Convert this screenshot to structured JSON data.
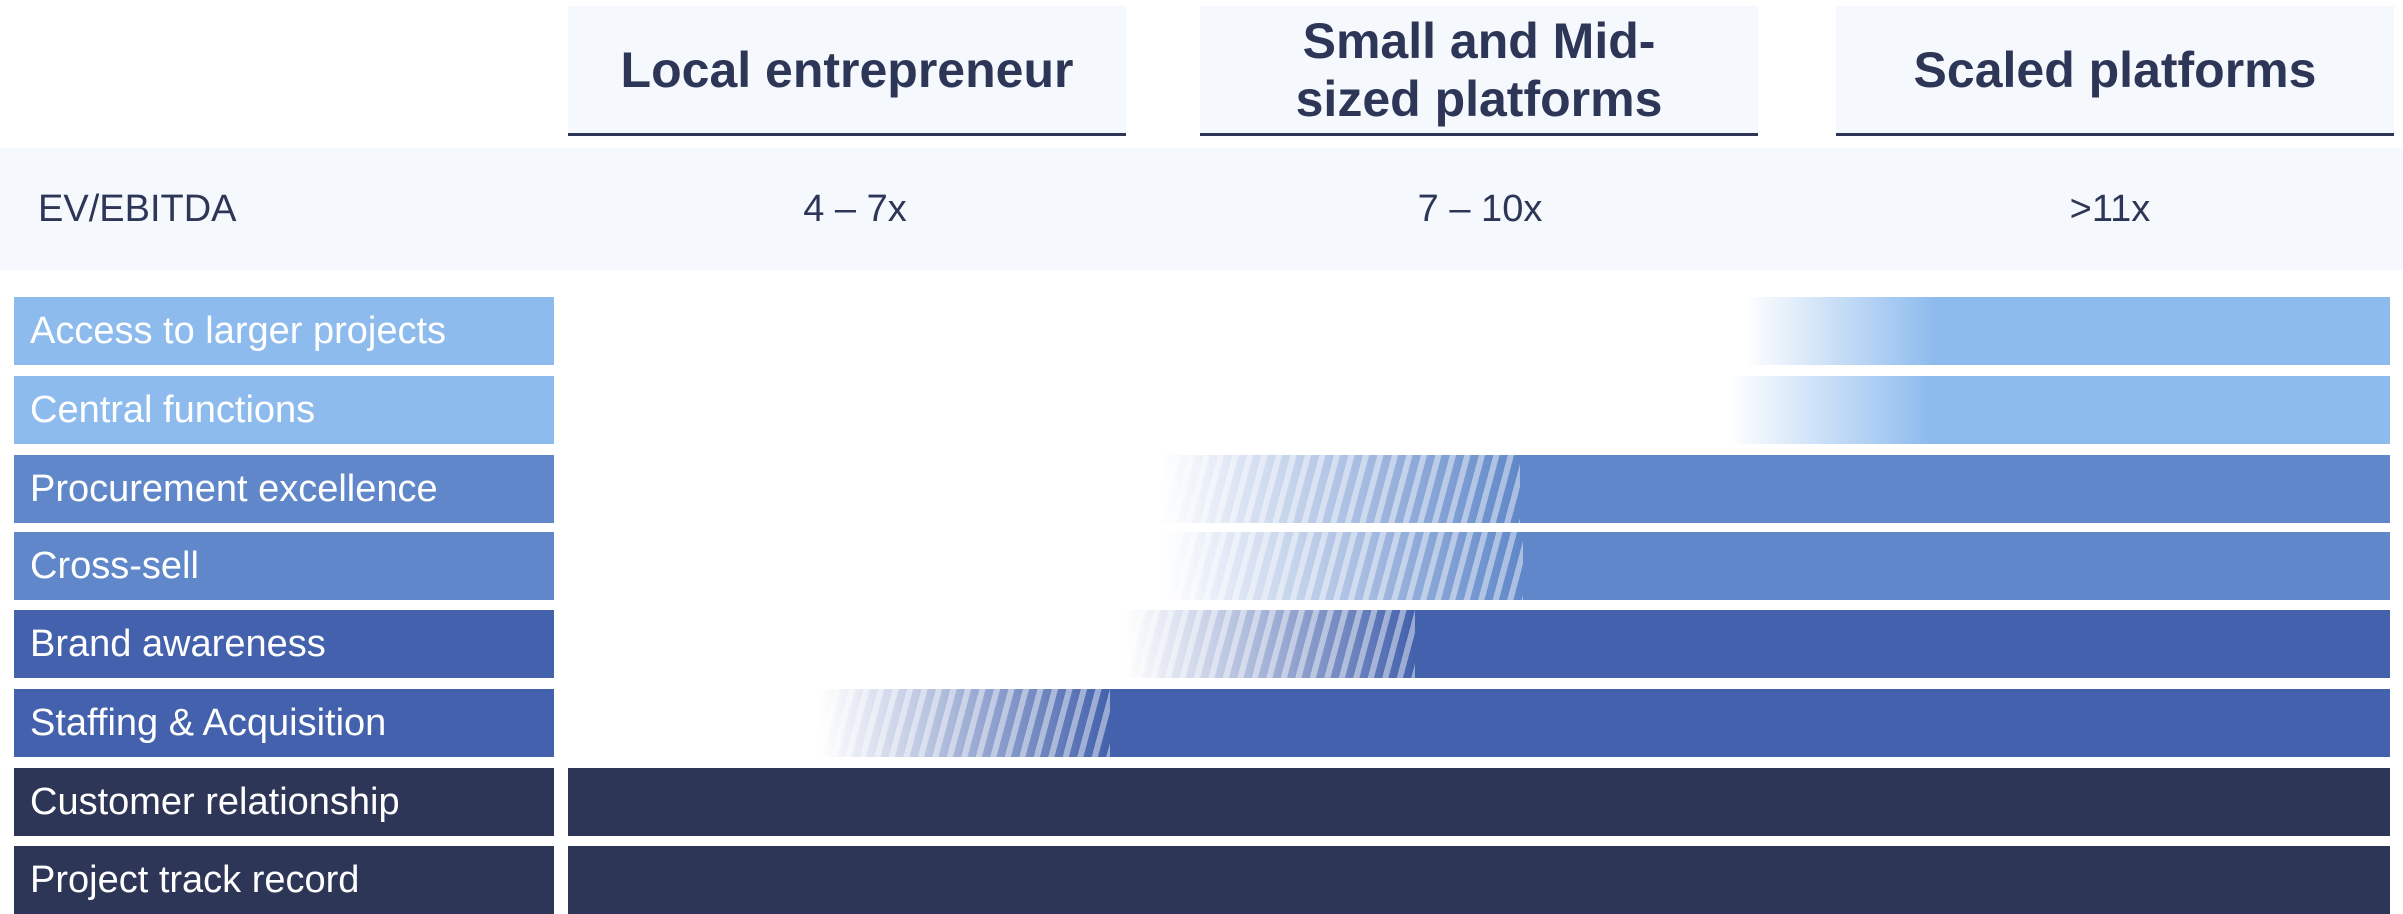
{
  "columns": [
    {
      "label": "Local entrepreneur"
    },
    {
      "label": "Small and Mid-sized platforms"
    },
    {
      "label": "Scaled platforms"
    }
  ],
  "valuation": {
    "label": "EV/EBITDA",
    "values": [
      "4 – 7x",
      "7 – 10x",
      ">11x"
    ]
  },
  "rows": [
    {
      "label": "Access to larger projects",
      "color": "#8dbbee"
    },
    {
      "label": "Central functions",
      "color": "#8dbbee"
    },
    {
      "label": "Procurement excellence",
      "color": "#6087c9"
    },
    {
      "label": "Cross-sell",
      "color": "#6087c9"
    },
    {
      "label": "Brand awareness",
      "color": "#4361ac"
    },
    {
      "label": "Staffing & Acquisition",
      "color": "#4361ac"
    },
    {
      "label": "Customer relationship",
      "color": "#2e3658"
    },
    {
      "label": "Project track record",
      "color": "#2e3658"
    }
  ]
}
